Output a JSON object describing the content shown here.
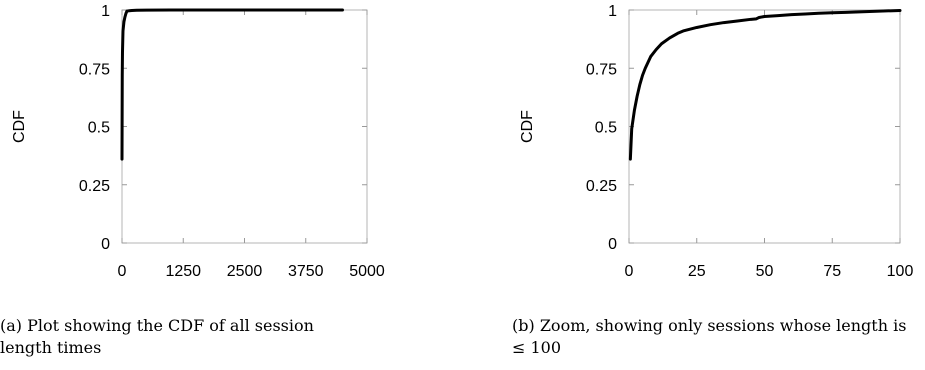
{
  "chart_data": [
    {
      "type": "line",
      "title": "",
      "xlabel": "",
      "ylabel": "CDF",
      "xlim": [
        0,
        5000
      ],
      "ylim": [
        0,
        1
      ],
      "x_ticks": [
        "0",
        "1250",
        "2500",
        "3750",
        "5000"
      ],
      "y_ticks": [
        "0",
        "0.25",
        "0.5",
        "0.75",
        "1"
      ],
      "grid": false,
      "series": [
        {
          "x": [
            0,
            5,
            10,
            20,
            40,
            60,
            80,
            100,
            150,
            200,
            300,
            500,
            1000,
            2000,
            3000,
            4500
          ],
          "values": [
            0.36,
            0.72,
            0.82,
            0.91,
            0.95,
            0.97,
            0.985,
            0.995,
            0.997,
            0.998,
            0.999,
            0.9995,
            0.9998,
            0.9999,
            1.0,
            1.0
          ]
        }
      ],
      "caption": "(a) Plot showing the CDF of all session length times"
    },
    {
      "type": "line",
      "title": "",
      "xlabel": "",
      "ylabel": "CDF",
      "xlim": [
        0,
        100
      ],
      "ylim": [
        0,
        1
      ],
      "x_ticks": [
        "0",
        "25",
        "50",
        "75",
        "100"
      ],
      "y_ticks": [
        "0",
        "0.25",
        "0.5",
        "0.75",
        "1"
      ],
      "grid": false,
      "series": [
        {
          "x": [
            0.5,
            1,
            2,
            3,
            4,
            5,
            6,
            8,
            10,
            12,
            15,
            18,
            20,
            25,
            30,
            35,
            40,
            45,
            47,
            48,
            50,
            55,
            60,
            65,
            70,
            75,
            80,
            85,
            90,
            95,
            100
          ],
          "values": [
            0.36,
            0.49,
            0.57,
            0.63,
            0.68,
            0.72,
            0.75,
            0.8,
            0.83,
            0.855,
            0.88,
            0.9,
            0.91,
            0.925,
            0.937,
            0.946,
            0.953,
            0.96,
            0.962,
            0.968,
            0.972,
            0.976,
            0.98,
            0.983,
            0.986,
            0.988,
            0.99,
            0.992,
            0.994,
            0.996,
            0.998
          ]
        }
      ],
      "caption": "(b) Zoom, showing only sessions whose length is ≤ 100"
    }
  ]
}
